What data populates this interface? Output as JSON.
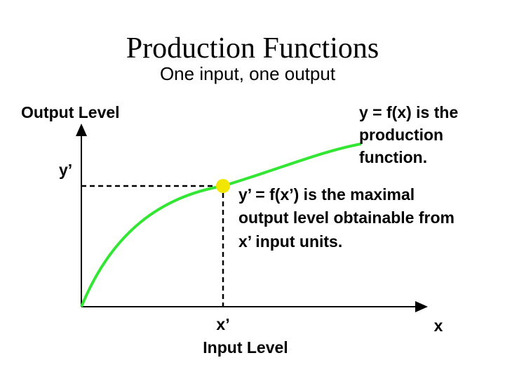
{
  "title": "Production Functions",
  "subtitle": "One input, one output",
  "y_axis_label": "Output Level",
  "x_axis_label": "Input Level",
  "y_prime": "y’",
  "x_prime": "x’",
  "x_label": "x",
  "function_note": [
    "y = f(x) is the",
    "production",
    "function."
  ],
  "point_note": [
    "y’ = f(x’) is the maximal",
    "output level obtainable from",
    "x’ input units."
  ]
}
